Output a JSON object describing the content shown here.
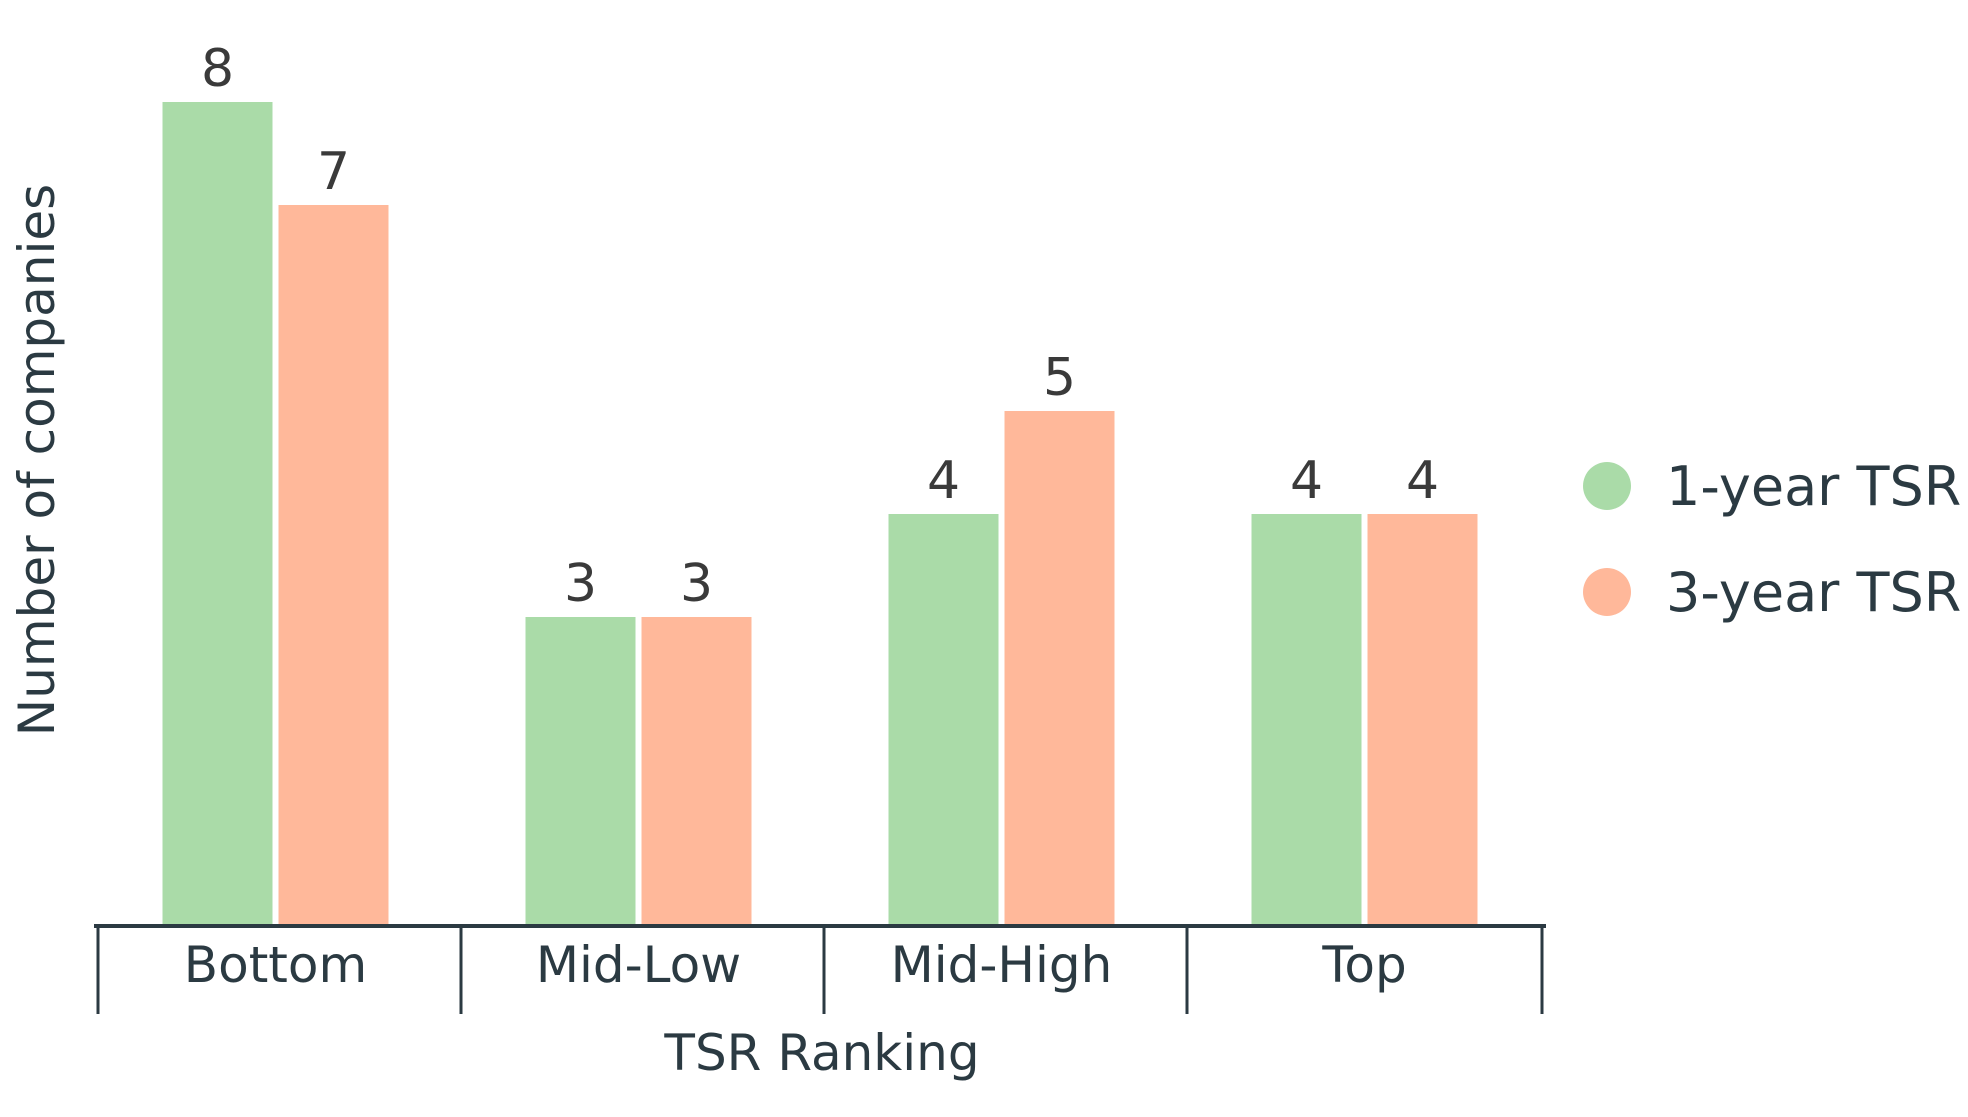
{
  "chart_data": {
    "type": "bar",
    "categories": [
      "Bottom",
      "Mid-Low",
      "Mid-High",
      "Top"
    ],
    "series": [
      {
        "name": "1-year TSR",
        "values": [
          8,
          3,
          4,
          4
        ],
        "color": "#aadba8"
      },
      {
        "name": "3-year TSR",
        "values": [
          7,
          3,
          5,
          4
        ],
        "color": "#ffb89a"
      }
    ],
    "xlabel": "TSR Ranking",
    "ylabel": "Number of companies",
    "ylim": [
      0,
      8
    ],
    "grid": false,
    "legend_position": "right",
    "data_labels": true,
    "axis_color": "#2b3a42"
  }
}
